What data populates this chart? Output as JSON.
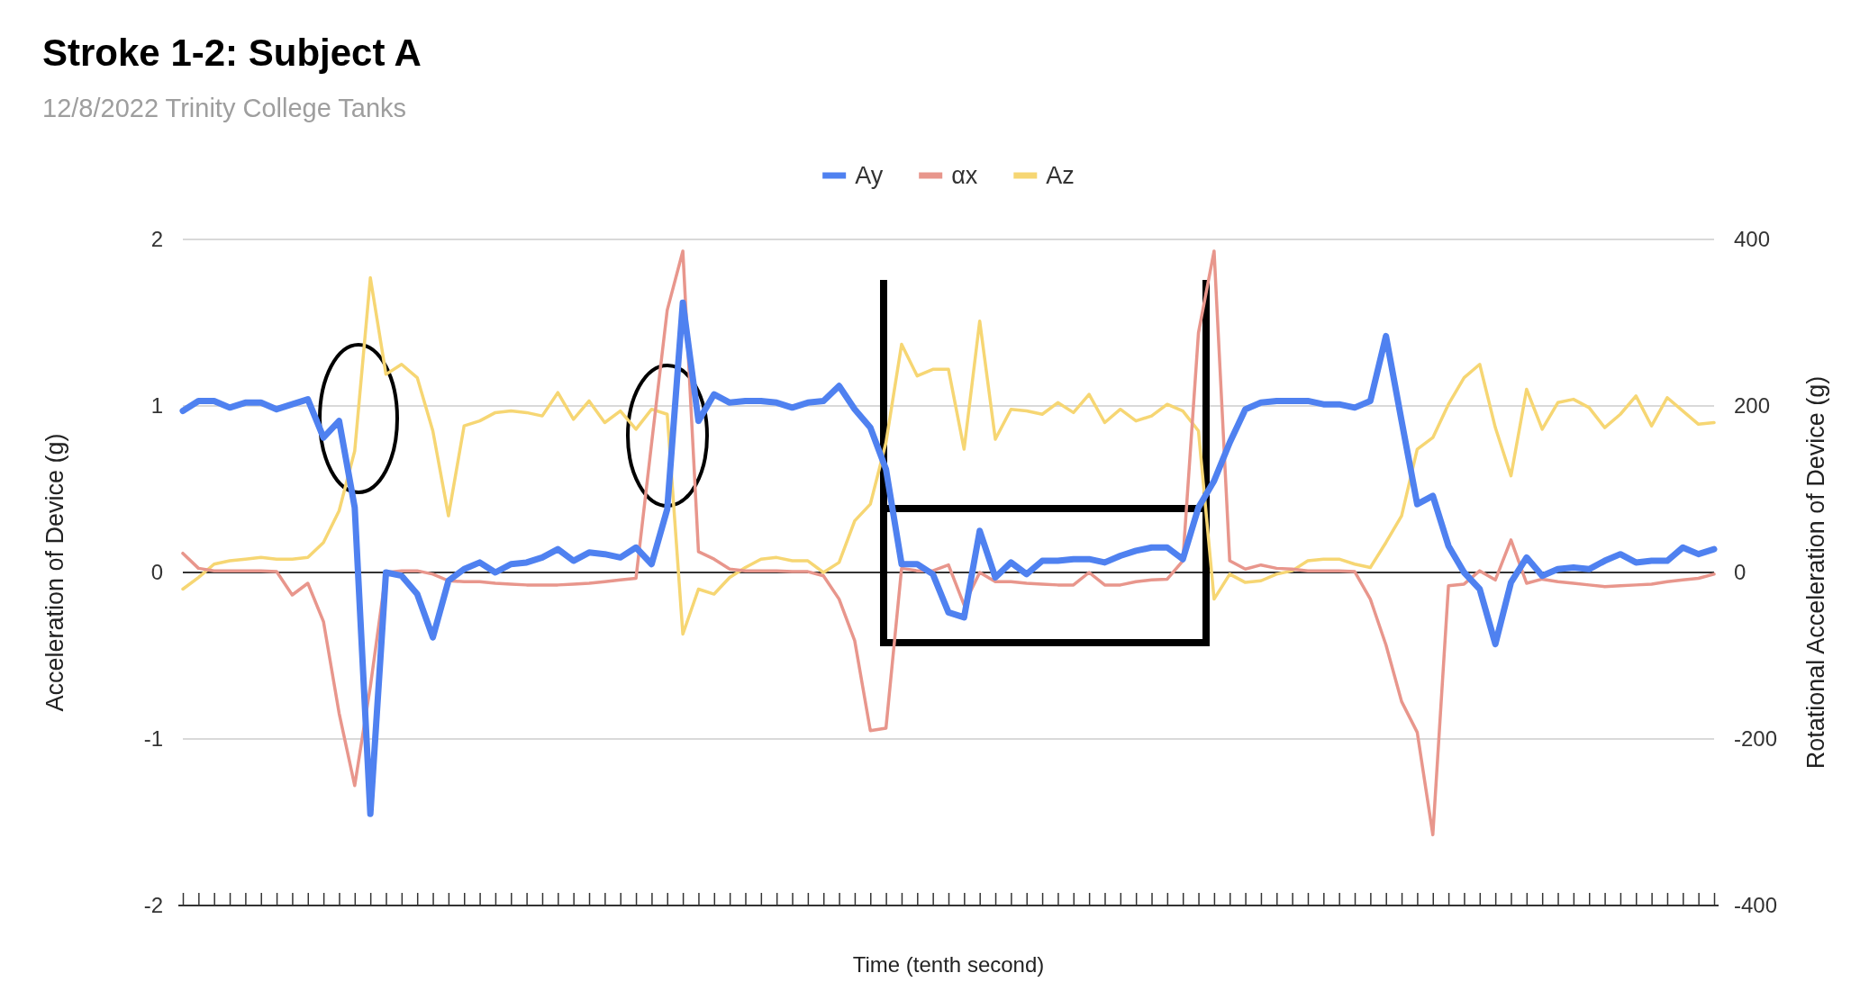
{
  "chart_data": {
    "type": "line",
    "title": "Stroke 1-2: Subject A",
    "subtitle": "12/8/2022 Trinity College Tanks",
    "xlabel": "Time (tenth second)",
    "ylabel": "Acceleration of Device (g)",
    "y2label": "Rotational Acceleration of Device (g)",
    "categories": [
      null,
      null,
      null,
      null,
      null,
      null,
      null,
      null,
      null,
      null,
      null,
      null,
      null,
      null,
      null,
      null,
      null,
      null,
      null,
      null,
      null,
      null,
      null,
      null,
      null,
      null,
      null,
      null,
      null,
      null,
      null,
      null,
      null,
      null,
      null,
      null,
      null,
      null,
      null,
      null,
      null,
      null,
      null,
      null,
      null,
      null,
      null,
      null,
      null,
      null,
      null,
      null,
      null,
      null,
      null,
      null,
      null,
      null,
      null,
      null,
      null,
      null,
      null,
      null,
      null,
      null,
      null,
      null,
      null,
      null,
      null,
      null,
      null,
      null,
      null,
      null,
      null,
      null,
      null,
      null,
      null,
      null,
      null,
      null,
      null,
      null,
      null,
      null,
      null,
      null,
      null,
      null,
      null,
      null,
      null,
      null,
      null,
      null,
      null
    ],
    "series": [
      {
        "name": "Ay",
        "color": "#4f81f0",
        "values": [
          0.97,
          1.03,
          1.03,
          0.99,
          1.02,
          1.02,
          0.98,
          1.01,
          1.04,
          0.81,
          0.91,
          0.39,
          -1.45,
          0,
          -0.02,
          -0.13,
          -0.39,
          -0.05,
          0.02,
          0.06,
          0,
          0.05,
          0.06,
          0.09,
          0.14,
          0.07,
          0.12,
          0.11,
          0.09,
          0.15,
          0.05,
          0.38,
          1.62,
          0.91,
          1.07,
          1.02,
          1.03,
          1.03,
          1.02,
          0.99,
          1.02,
          1.03,
          1.12,
          0.98,
          0.87,
          0.62,
          0.05,
          0.05,
          -0.01,
          -0.24,
          -0.27,
          0.25,
          -0.03,
          0.06,
          -0.01,
          0.07,
          0.07,
          0.08,
          0.08,
          0.06,
          0.1,
          0.13,
          0.15,
          0.15,
          0.08,
          0.39,
          0.55,
          0.78,
          0.98,
          1.02,
          1.03,
          1.03,
          1.03,
          1.01,
          1.01,
          0.99,
          1.03,
          1.42,
          0.91,
          0.41,
          0.46,
          0.16,
          0,
          -0.1,
          -0.43,
          -0.06,
          0.09,
          -0.02,
          0.02,
          0.03,
          0.02,
          0.07,
          0.11,
          0.06,
          0.07,
          0.07,
          0.15,
          0.11,
          0.14
        ]
      },
      {
        "name": "αx",
        "color": "#e8968c",
        "axis": "y2",
        "values": [
          23,
          5,
          2,
          2,
          2,
          2,
          1,
          -27,
          -13,
          -59,
          -169,
          -256,
          -137,
          0,
          2,
          2,
          -2,
          -10,
          -11,
          -11,
          -13,
          -14,
          -15,
          -15,
          -15,
          -14,
          -13,
          -11,
          -9,
          -7,
          155,
          315,
          386,
          25,
          16,
          4,
          2,
          2,
          2,
          1,
          1,
          -4,
          -32,
          -82,
          -190,
          -187,
          5,
          2,
          2,
          9,
          -39,
          0,
          -11,
          -11,
          -13,
          -14,
          -15,
          -15,
          0,
          -15,
          -15,
          -11,
          -9,
          -8,
          14,
          288,
          386,
          14,
          4,
          9,
          5,
          4,
          2,
          2,
          2,
          1,
          -32,
          -87,
          -155,
          -192,
          -315,
          -16,
          -14,
          2,
          -9,
          39,
          -13,
          -8,
          -11,
          -13,
          -15,
          -17,
          -16,
          -15,
          -14,
          -11,
          -9,
          -7,
          -2
        ]
      },
      {
        "name": "Az",
        "color": "#f6d673",
        "values": [
          -0.1,
          -0.03,
          0.05,
          0.07,
          0.08,
          0.09,
          0.08,
          0.08,
          0.09,
          0.18,
          0.37,
          0.73,
          1.77,
          1.19,
          1.25,
          1.17,
          0.85,
          0.34,
          0.88,
          0.91,
          0.96,
          0.97,
          0.96,
          0.94,
          1.08,
          0.92,
          1.03,
          0.9,
          0.97,
          0.86,
          0.98,
          0.95,
          -0.37,
          -0.1,
          -0.13,
          -0.03,
          0.03,
          0.08,
          0.09,
          0.07,
          0.07,
          0,
          0.06,
          0.31,
          0.41,
          0.78,
          1.37,
          1.18,
          1.22,
          1.22,
          0.74,
          1.51,
          0.8,
          0.98,
          0.97,
          0.95,
          1.02,
          0.96,
          1.07,
          0.9,
          0.98,
          0.91,
          0.94,
          1.01,
          0.97,
          0.85,
          -0.16,
          -0.01,
          -0.06,
          -0.05,
          -0.01,
          0.01,
          0.07,
          0.08,
          0.08,
          0.05,
          0.03,
          0.18,
          0.34,
          0.74,
          0.81,
          1.01,
          1.17,
          1.25,
          0.87,
          0.58,
          1.1,
          0.86,
          1.02,
          1.04,
          0.99,
          0.87,
          0.95,
          1.06,
          0.88,
          1.05,
          0.97,
          0.89,
          0.9
        ]
      }
    ],
    "ylim": [
      -2,
      2
    ],
    "yticks": [
      -2,
      -1,
      0,
      1,
      2
    ],
    "y2lim": [
      -400,
      400
    ],
    "y2ticks": [
      -400,
      -200,
      0,
      200,
      400
    ],
    "grid": "y",
    "legend": "top"
  }
}
